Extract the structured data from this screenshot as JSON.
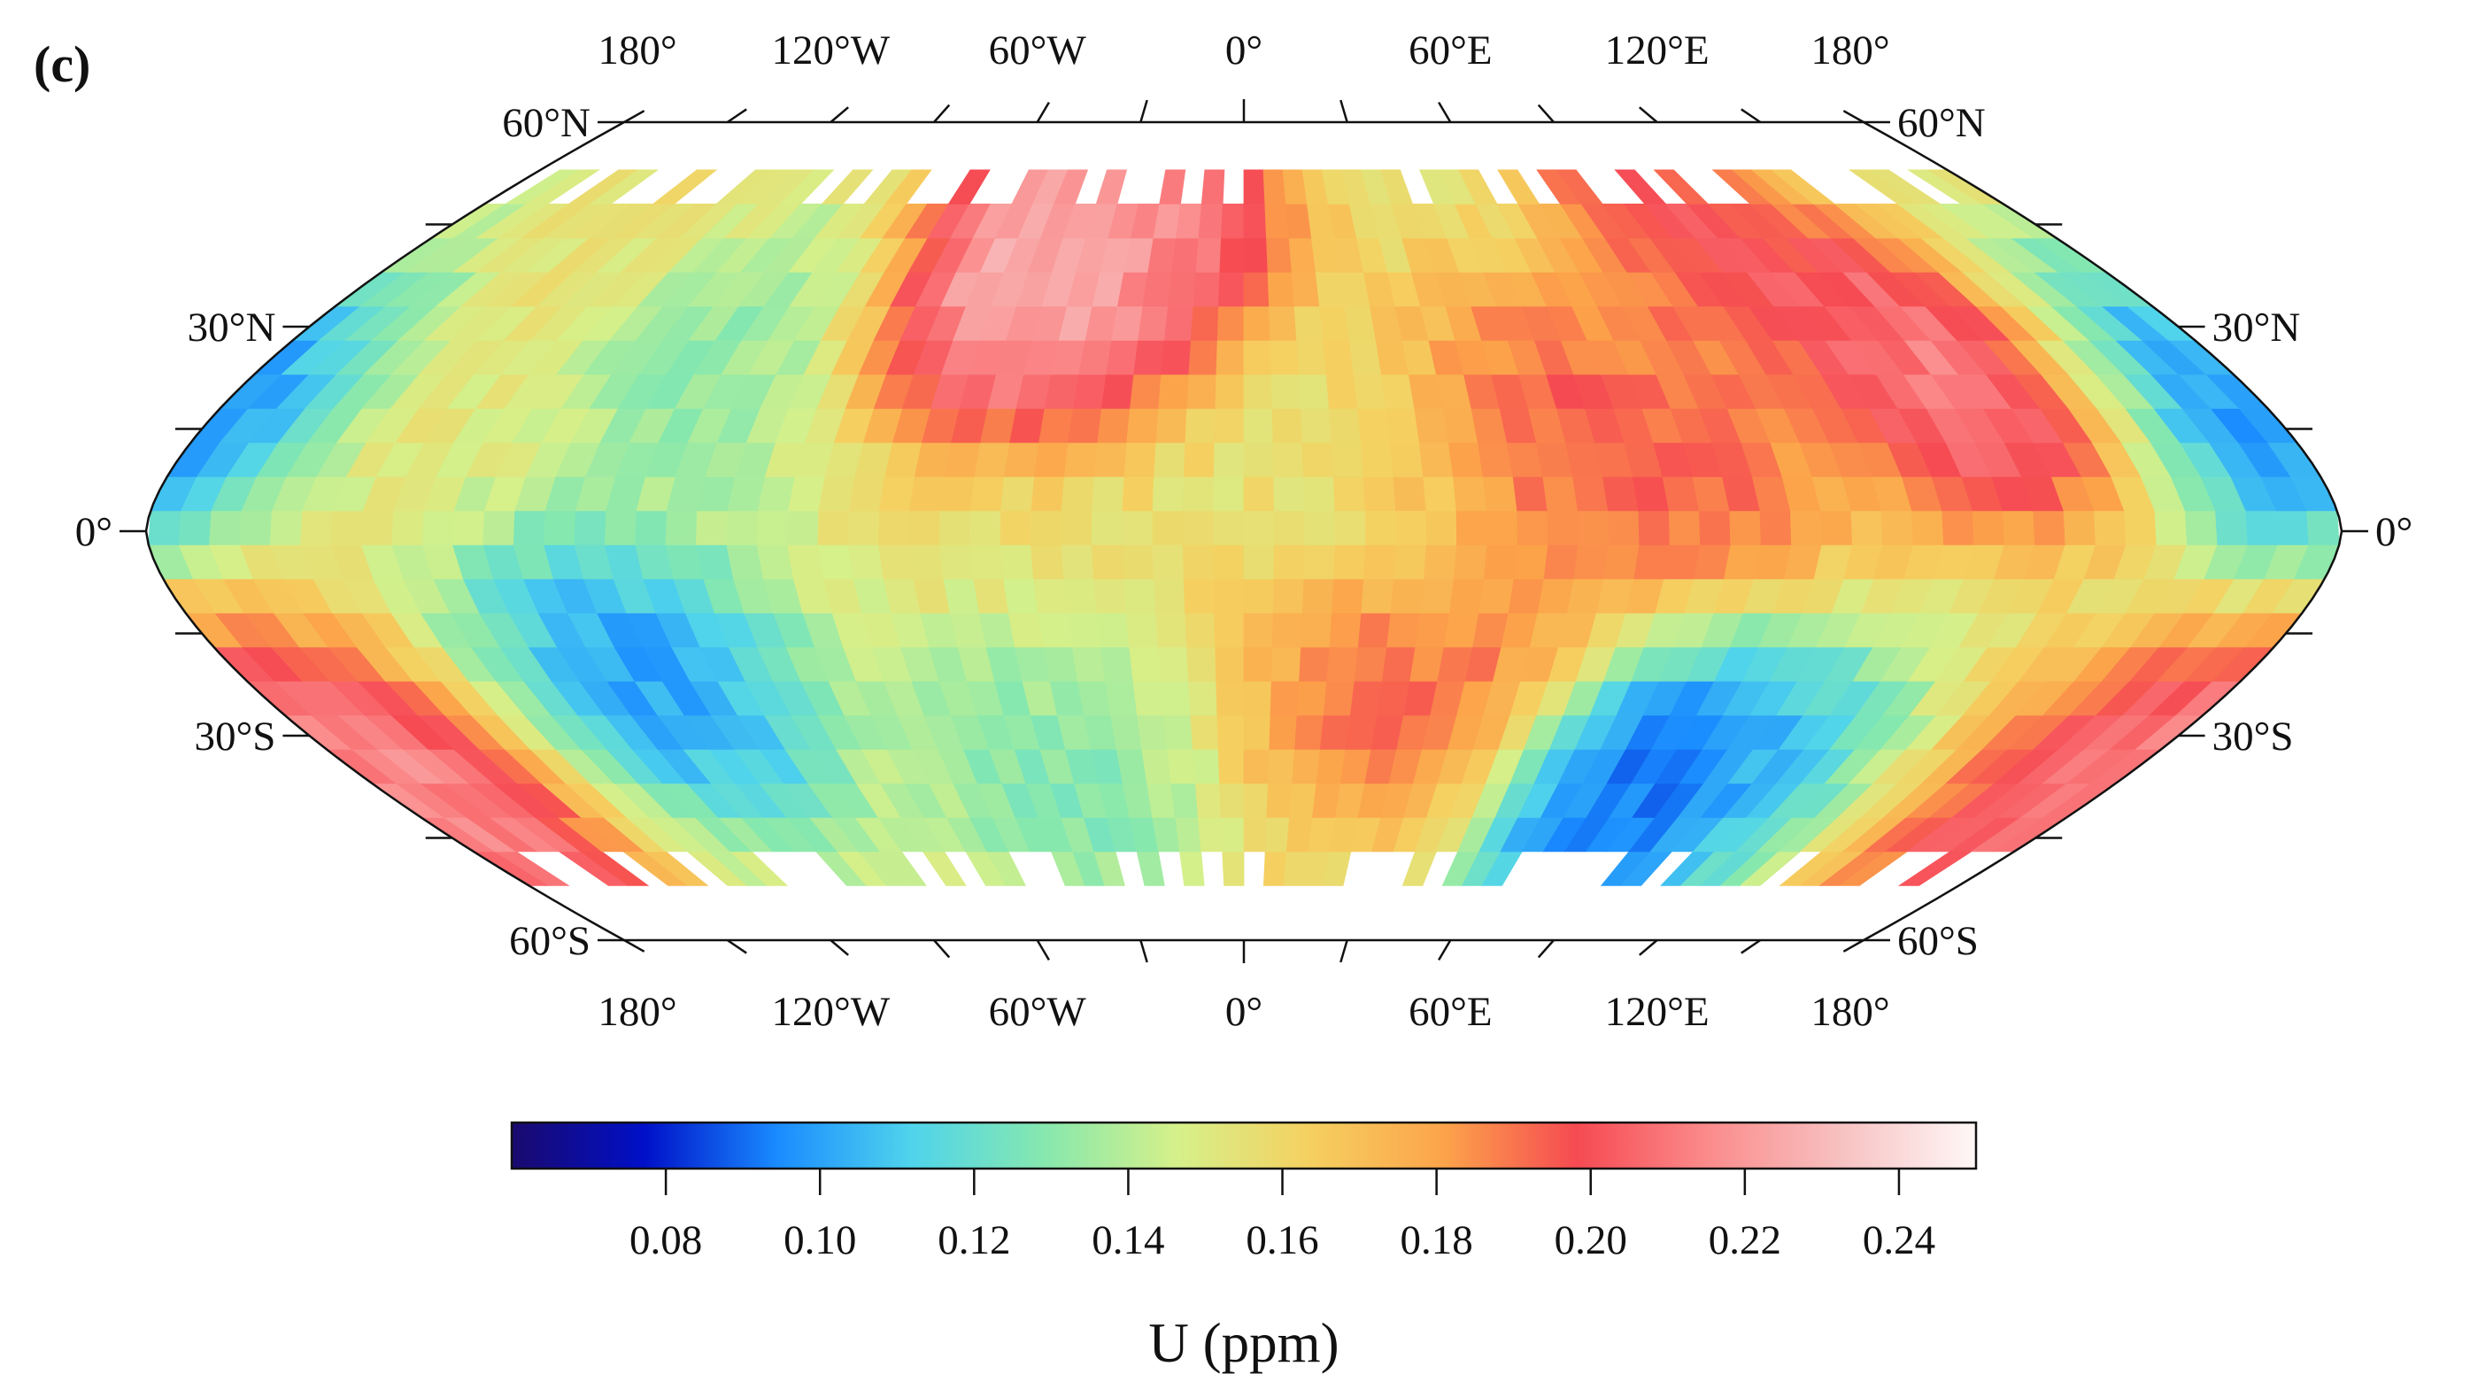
{
  "panel_label": "(c)",
  "chart_data": {
    "type": "heatmap",
    "projection": "Robinson-like elliptical world map, lat range 60°S to 60°N, lon 180° to 180°",
    "grid_resolution_deg": 5,
    "lon_range": [
      -180,
      180
    ],
    "lat_range": [
      -60,
      60
    ],
    "data_coverage_lat": [
      -52,
      52
    ],
    "top_lon_labels": [
      "180°",
      "120°W",
      "60°W",
      "0°",
      "60°E",
      "120°E",
      "180°"
    ],
    "bottom_lon_labels": [
      "180°",
      "120°W",
      "60°W",
      "0°",
      "60°E",
      "120°E",
      "180°"
    ],
    "left_lat_labels": [
      "60°N",
      "30°N",
      "0°",
      "30°S",
      "60°S"
    ],
    "right_lat_labels": [
      "60°N",
      "30°N",
      "0°",
      "30°S",
      "60°S"
    ],
    "colorbar": {
      "title": "U (ppm)",
      "range": [
        0.06,
        0.25
      ],
      "ticks": [
        "0.08",
        "0.10",
        "0.12",
        "0.14",
        "0.16",
        "0.18",
        "0.20",
        "0.22",
        "0.24"
      ],
      "tick_values": [
        0.08,
        0.1,
        0.12,
        0.14,
        0.16,
        0.18,
        0.2,
        0.22,
        0.24
      ],
      "colors": [
        "#1a0a6e",
        "#0010c8",
        "#1a8cff",
        "#4fd4ec",
        "#86e8ae",
        "#d6f08a",
        "#f5d060",
        "#fca44a",
        "#f64a52",
        "#fb8c8c",
        "#f7c2c2",
        "#fff7f7"
      ]
    },
    "anomalies": [
      {
        "lon": -47.5,
        "lat": 37.5,
        "value": 0.245
      },
      {
        "lon": -32.5,
        "lat": 42.5,
        "value": 0.235
      },
      {
        "lon": -17.5,
        "lat": 47.5,
        "value": 0.22
      },
      {
        "lon": 27.5,
        "lat": 7.5,
        "value": 0.15
      },
      {
        "lon": 50,
        "lat": 12.5,
        "value": 0.215
      },
      {
        "lon": 75,
        "lat": 10,
        "value": 0.2
      },
      {
        "lon": 100,
        "lat": 45,
        "value": 0.215
      },
      {
        "lon": 132,
        "lat": 22,
        "value": 0.235
      },
      {
        "lon": 172,
        "lat": 18,
        "value": 0.075
      },
      {
        "lon": -107,
        "lat": -22,
        "value": 0.082
      },
      {
        "lon": 82,
        "lat": -38,
        "value": 0.065
      },
      {
        "lon": 98,
        "lat": -40,
        "value": 0.1
      },
      {
        "lon": 30,
        "lat": -22,
        "value": 0.205
      },
      {
        "lon": -172,
        "lat": -37,
        "value": 0.235
      },
      {
        "lon": 170,
        "lat": -38,
        "value": 0.215
      },
      {
        "lon": -95,
        "lat": 25,
        "value": 0.125
      },
      {
        "lon": -40,
        "lat": -38,
        "value": 0.12
      }
    ],
    "background_value": 0.155
  }
}
